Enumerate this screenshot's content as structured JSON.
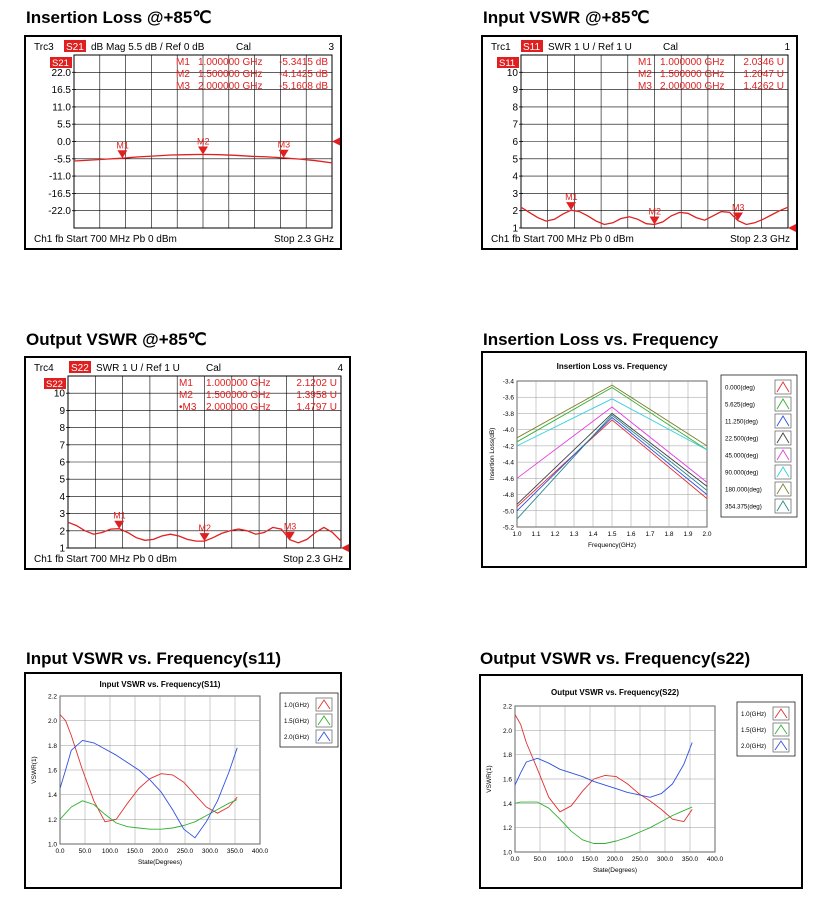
{
  "headings": {
    "p1": "Insertion Loss @+85℃",
    "p2": "Input VSWR @+85℃",
    "p3": "Output VSWR @+85℃",
    "p4": "Insertion Loss vs. Frequency",
    "p5": "Input  VSWR vs. Frequency(s11)",
    "p6": "Output  VSWR  vs. Frequency(s22)"
  },
  "colors": {
    "trace_red": "#e02020",
    "na_bg": "#ffffff",
    "grid": "#000000"
  },
  "chart_data": [
    {
      "type": "line",
      "id": "na1",
      "header": {
        "trc": "Trc3",
        "param": "S21",
        "format": "dB Mag  5.5 dB /  Ref 0 dB",
        "cal": "Cal",
        "num": "3"
      },
      "footer": {
        "left": "Ch1  fb  Start  700 MHz   Pb   0 dBm",
        "right": "Stop  2.3 GHz"
      },
      "badge": "S21",
      "y_ticks": [
        "22.0",
        "16.5",
        "11.0",
        "5.5",
        "0.0",
        "-5.5",
        "-11.0",
        "-16.5",
        "-22.0"
      ],
      "ylim": [
        -27.5,
        27.5
      ],
      "xlim": [
        0.7,
        2.3
      ],
      "markers": [
        {
          "label": "M1",
          "freq": "1.000000 GHz",
          "value": "-5.3415 dB",
          "x": 1.0,
          "y": -5.34
        },
        {
          "label": "M2",
          "freq": "1.500000 GHz",
          "value": "-4.1425 dB",
          "x": 1.5,
          "y": -4.14
        },
        {
          "label": "M3",
          "freq": "2.000000 GHz",
          "value": "-5.1608 dB",
          "x": 2.0,
          "y": -5.16
        }
      ],
      "trace": {
        "x": [
          0.7,
          0.8,
          0.9,
          1.0,
          1.1,
          1.2,
          1.3,
          1.4,
          1.5,
          1.6,
          1.7,
          1.8,
          1.9,
          2.0,
          2.1,
          2.2,
          2.3
        ],
        "y": [
          -6.2,
          -5.9,
          -5.6,
          -5.3,
          -4.9,
          -4.6,
          -4.3,
          -4.2,
          -4.1,
          -4.2,
          -4.4,
          -4.7,
          -4.9,
          -5.2,
          -5.6,
          -6.1,
          -6.8
        ]
      },
      "ref_level": 0
    },
    {
      "type": "line",
      "id": "na2",
      "header": {
        "trc": "Trc1",
        "param": "S11",
        "format": "SWR  1 U /  Ref 1 U",
        "cal": "Cal",
        "num": "1"
      },
      "footer": {
        "left": "Ch1  fb  Start  700 MHz   Pb   0 dBm",
        "right": "Stop  2.3 GHz"
      },
      "badge": "S11",
      "y_ticks": [
        "10",
        "9",
        "8",
        "7",
        "6",
        "5",
        "4",
        "3",
        "2",
        "1"
      ],
      "ylim": [
        1,
        11
      ],
      "xlim": [
        0.7,
        2.3
      ],
      "markers": [
        {
          "label": "M1",
          "freq": "1.000000 GHz",
          "value": "2.0346 U",
          "x": 1.0,
          "y": 2.03
        },
        {
          "label": "M2",
          "freq": "1.500000 GHz",
          "value": "1.2047 U",
          "x": 1.5,
          "y": 1.2
        },
        {
          "label": "M3",
          "freq": "2.000000 GHz",
          "value": "1.4262 U",
          "x": 2.0,
          "y": 1.43
        }
      ],
      "trace": {
        "x": [
          0.7,
          0.75,
          0.8,
          0.85,
          0.9,
          0.95,
          1.0,
          1.05,
          1.1,
          1.15,
          1.2,
          1.25,
          1.3,
          1.35,
          1.4,
          1.45,
          1.5,
          1.55,
          1.6,
          1.65,
          1.7,
          1.75,
          1.8,
          1.85,
          1.9,
          1.95,
          2.0,
          2.05,
          2.1,
          2.15,
          2.2,
          2.25,
          2.3
        ],
        "y": [
          2.2,
          1.9,
          1.6,
          1.4,
          1.5,
          1.8,
          2.03,
          1.95,
          1.7,
          1.4,
          1.2,
          1.3,
          1.55,
          1.65,
          1.5,
          1.25,
          1.2,
          1.35,
          1.7,
          1.9,
          1.85,
          1.6,
          1.45,
          1.7,
          1.95,
          1.9,
          1.43,
          1.2,
          1.3,
          1.5,
          1.75,
          2.0,
          2.2
        ]
      },
      "ref_level": 1
    },
    {
      "type": "line",
      "id": "na3",
      "header": {
        "trc": "Trc4",
        "param": "S22",
        "format": "SWR  1 U /  Ref 1 U",
        "cal": "Cal",
        "num": "4"
      },
      "footer": {
        "left": "Ch1  fb  Start  700 MHz   Pb   0 dBm",
        "right": "Stop  2.3 GHz"
      },
      "badge": "S22",
      "y_ticks": [
        "10",
        "9",
        "8",
        "7",
        "6",
        "5",
        "4",
        "3",
        "2",
        "1"
      ],
      "ylim": [
        1,
        11
      ],
      "xlim": [
        0.7,
        2.3
      ],
      "markers": [
        {
          "label": "M1",
          "freq": "1.000000 GHz",
          "value": "2.1202 U",
          "x": 1.0,
          "y": 2.12
        },
        {
          "label": "M2",
          "freq": "1.500000 GHz",
          "value": "1.3958 U",
          "x": 1.5,
          "y": 1.4
        },
        {
          "label": "•M3",
          "freq": "2.000000 GHz",
          "value": "1.4797 U",
          "x": 2.0,
          "y": 1.48
        }
      ],
      "trace": {
        "x": [
          0.7,
          0.75,
          0.8,
          0.85,
          0.9,
          0.95,
          1.0,
          1.05,
          1.1,
          1.15,
          1.2,
          1.25,
          1.3,
          1.35,
          1.4,
          1.45,
          1.5,
          1.55,
          1.6,
          1.65,
          1.7,
          1.75,
          1.8,
          1.85,
          1.9,
          1.95,
          2.0,
          2.05,
          2.1,
          2.15,
          2.2,
          2.25,
          2.3
        ],
        "y": [
          2.5,
          2.3,
          2.0,
          1.8,
          1.9,
          2.1,
          2.12,
          1.9,
          1.6,
          1.45,
          1.5,
          1.7,
          1.8,
          1.7,
          1.5,
          1.4,
          1.4,
          1.6,
          1.85,
          2.0,
          2.1,
          2.0,
          1.8,
          1.9,
          2.2,
          2.1,
          1.48,
          1.3,
          1.5,
          1.9,
          2.2,
          1.9,
          1.4
        ]
      },
      "ref_level": 1
    },
    {
      "type": "line",
      "id": "p4",
      "title": "Insertion Loss vs. Frequency",
      "xlabel": "Frequency(GHz)",
      "ylabel": "Insertion Loss(dB)",
      "xlim": [
        1.0,
        2.0
      ],
      "ylim": [
        -5.2,
        -3.4
      ],
      "x_ticks": [
        "1.0",
        "1.1",
        "1.2",
        "1.3",
        "1.4",
        "1.5",
        "1.6",
        "1.7",
        "1.8",
        "1.9",
        "2.0"
      ],
      "y_ticks": [
        "-3.4",
        "-3.6",
        "-3.8",
        "-4.0",
        "-4.2",
        "-4.4",
        "-4.6",
        "-4.8",
        "-5.0",
        "-5.2"
      ],
      "x": [
        1.0,
        1.5,
        2.0
      ],
      "series": [
        {
          "name": "0.000(deg)",
          "color": "#e03030",
          "values": [
            -4.95,
            -3.88,
            -4.85
          ]
        },
        {
          "name": "5.625(deg)",
          "color": "#30b030",
          "values": [
            -4.15,
            -3.48,
            -4.25
          ]
        },
        {
          "name": "11.250(deg)",
          "color": "#3050e0",
          "values": [
            -5.0,
            -3.85,
            -4.8
          ]
        },
        {
          "name": "22.500(deg)",
          "color": "#404040",
          "values": [
            -4.92,
            -3.8,
            -4.7
          ]
        },
        {
          "name": "45.000(deg)",
          "color": "#e040e0",
          "values": [
            -4.6,
            -3.72,
            -4.65
          ]
        },
        {
          "name": "90.000(deg)",
          "color": "#30d0e0",
          "values": [
            -4.2,
            -3.62,
            -4.25
          ]
        },
        {
          "name": "180.000(deg)",
          "color": "#808030",
          "values": [
            -4.1,
            -3.45,
            -4.2
          ]
        },
        {
          "name": "354.375(deg)",
          "color": "#2a8a8a",
          "values": [
            -5.1,
            -3.82,
            -4.75
          ]
        }
      ]
    },
    {
      "type": "line",
      "id": "p5",
      "title": "Input VSWR vs. Frequency(S11)",
      "xlabel": "State(Degrees)",
      "ylabel": "VSWR(1)",
      "xlim": [
        0,
        400
      ],
      "ylim": [
        1.0,
        2.2
      ],
      "x_ticks": [
        "0.0",
        "50.0",
        "100.0",
        "150.0",
        "200.0",
        "250.0",
        "300.0",
        "350.0",
        "400.0"
      ],
      "y_ticks": [
        "2.2",
        "2.0",
        "1.8",
        "1.6",
        "1.4",
        "1.2",
        "1.0"
      ],
      "series": [
        {
          "name": "1.0(GHz)",
          "color": "#e03030",
          "x": [
            0,
            11.25,
            22.5,
            45,
            67.5,
            90,
            112.5,
            135,
            157.5,
            180,
            202.5,
            225,
            247.5,
            270,
            292.5,
            315,
            337.5,
            354.375
          ],
          "values": [
            2.05,
            2.0,
            1.88,
            1.6,
            1.35,
            1.18,
            1.2,
            1.33,
            1.45,
            1.53,
            1.57,
            1.56,
            1.5,
            1.4,
            1.3,
            1.25,
            1.3,
            1.38
          ]
        },
        {
          "name": "1.5(GHz)",
          "color": "#30b030",
          "x": [
            0,
            11.25,
            22.5,
            45,
            67.5,
            90,
            112.5,
            135,
            157.5,
            180,
            202.5,
            225,
            247.5,
            270,
            292.5,
            315,
            337.5,
            354.375
          ],
          "values": [
            1.2,
            1.25,
            1.3,
            1.35,
            1.32,
            1.24,
            1.17,
            1.14,
            1.13,
            1.12,
            1.12,
            1.13,
            1.15,
            1.18,
            1.23,
            1.28,
            1.33,
            1.36
          ]
        },
        {
          "name": "2.0(GHz)",
          "color": "#3050e0",
          "x": [
            0,
            11.25,
            22.5,
            45,
            67.5,
            90,
            112.5,
            135,
            157.5,
            180,
            202.5,
            225,
            247.5,
            270,
            292.5,
            315,
            337.5,
            354.375
          ],
          "values": [
            1.45,
            1.6,
            1.76,
            1.84,
            1.82,
            1.77,
            1.72,
            1.66,
            1.6,
            1.52,
            1.42,
            1.28,
            1.12,
            1.05,
            1.18,
            1.35,
            1.58,
            1.78
          ]
        }
      ]
    },
    {
      "type": "line",
      "id": "p6",
      "title": "Output VSWR vs. Frequency(S22)",
      "xlabel": "State(Degrees)",
      "ylabel": "VSWR(1)",
      "xlim": [
        0,
        400
      ],
      "ylim": [
        1.0,
        2.2
      ],
      "x_ticks": [
        "0.0",
        "50.0",
        "100.0",
        "150.0",
        "200.0",
        "250.0",
        "300.0",
        "350.0",
        "400.0"
      ],
      "y_ticks": [
        "2.2",
        "2.0",
        "1.8",
        "1.6",
        "1.4",
        "1.2",
        "1.0"
      ],
      "series": [
        {
          "name": "1.0(GHz)",
          "color": "#e03030",
          "x": [
            0,
            11.25,
            22.5,
            45,
            67.5,
            90,
            112.5,
            135,
            157.5,
            180,
            202.5,
            225,
            247.5,
            270,
            292.5,
            315,
            337.5,
            354.375
          ],
          "values": [
            2.13,
            2.05,
            1.9,
            1.68,
            1.45,
            1.33,
            1.38,
            1.5,
            1.6,
            1.63,
            1.62,
            1.56,
            1.48,
            1.42,
            1.35,
            1.27,
            1.25,
            1.35
          ]
        },
        {
          "name": "1.5(GHz)",
          "color": "#30b030",
          "x": [
            0,
            11.25,
            22.5,
            45,
            67.5,
            90,
            112.5,
            135,
            157.5,
            180,
            202.5,
            225,
            247.5,
            270,
            292.5,
            315,
            337.5,
            354.375
          ],
          "values": [
            1.4,
            1.41,
            1.41,
            1.41,
            1.36,
            1.27,
            1.17,
            1.1,
            1.07,
            1.07,
            1.09,
            1.12,
            1.16,
            1.2,
            1.25,
            1.3,
            1.34,
            1.37
          ]
        },
        {
          "name": "2.0(GHz)",
          "color": "#3050e0",
          "x": [
            0,
            11.25,
            22.5,
            45,
            67.5,
            90,
            112.5,
            135,
            157.5,
            180,
            202.5,
            225,
            247.5,
            270,
            292.5,
            315,
            337.5,
            354.375
          ],
          "values": [
            1.55,
            1.65,
            1.74,
            1.77,
            1.73,
            1.68,
            1.65,
            1.62,
            1.58,
            1.55,
            1.52,
            1.49,
            1.47,
            1.45,
            1.48,
            1.56,
            1.72,
            1.9
          ]
        }
      ]
    }
  ]
}
